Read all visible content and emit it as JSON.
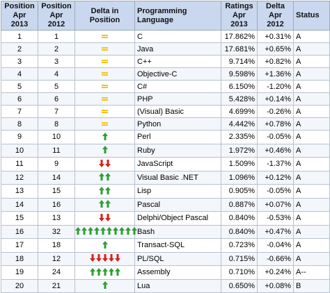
{
  "headers": {
    "pos2013": "Position Apr 2013",
    "pos2012": "Position Apr 2012",
    "delta": "Delta in Position",
    "lang": "Programming Language",
    "ratings": "Ratings Apr 2013",
    "delta2012": "Delta Apr 2012",
    "status": "Status"
  },
  "colors": {
    "same": "#f2c419",
    "up": "#2e9e32",
    "down": "#d8201c",
    "header_bg": "#c9d8ee"
  },
  "rows": [
    {
      "pos2013": "1",
      "pos2012": "1",
      "change": {
        "dir": "same",
        "count": 1
      },
      "lang": "C",
      "ratings": "17.862%",
      "delta2012": "+0.31%",
      "status": "A"
    },
    {
      "pos2013": "2",
      "pos2012": "2",
      "change": {
        "dir": "same",
        "count": 1
      },
      "lang": "Java",
      "ratings": "17.681%",
      "delta2012": "+0.65%",
      "status": "A"
    },
    {
      "pos2013": "3",
      "pos2012": "3",
      "change": {
        "dir": "same",
        "count": 1
      },
      "lang": "C++",
      "ratings": "9.714%",
      "delta2012": "+0.82%",
      "status": "A"
    },
    {
      "pos2013": "4",
      "pos2012": "4",
      "change": {
        "dir": "same",
        "count": 1
      },
      "lang": "Objective-C",
      "ratings": "9.598%",
      "delta2012": "+1.36%",
      "status": "A"
    },
    {
      "pos2013": "5",
      "pos2012": "5",
      "change": {
        "dir": "same",
        "count": 1
      },
      "lang": "C#",
      "ratings": "6.150%",
      "delta2012": "-1.20%",
      "status": "A"
    },
    {
      "pos2013": "6",
      "pos2012": "6",
      "change": {
        "dir": "same",
        "count": 1
      },
      "lang": "PHP",
      "ratings": "5.428%",
      "delta2012": "+0.14%",
      "status": "A"
    },
    {
      "pos2013": "7",
      "pos2012": "7",
      "change": {
        "dir": "same",
        "count": 1
      },
      "lang": "(Visual) Basic",
      "ratings": "4.699%",
      "delta2012": "-0.26%",
      "status": "A"
    },
    {
      "pos2013": "8",
      "pos2012": "8",
      "change": {
        "dir": "same",
        "count": 1
      },
      "lang": "Python",
      "ratings": "4.442%",
      "delta2012": "+0.78%",
      "status": "A"
    },
    {
      "pos2013": "9",
      "pos2012": "10",
      "change": {
        "dir": "up",
        "count": 1
      },
      "lang": "Perl",
      "ratings": "2.335%",
      "delta2012": "-0.05%",
      "status": "A"
    },
    {
      "pos2013": "10",
      "pos2012": "11",
      "change": {
        "dir": "up",
        "count": 1
      },
      "lang": "Ruby",
      "ratings": "1.972%",
      "delta2012": "+0.46%",
      "status": "A"
    },
    {
      "pos2013": "11",
      "pos2012": "9",
      "change": {
        "dir": "down",
        "count": 2
      },
      "lang": "JavaScript",
      "ratings": "1.509%",
      "delta2012": "-1.37%",
      "status": "A"
    },
    {
      "pos2013": "12",
      "pos2012": "14",
      "change": {
        "dir": "up",
        "count": 2
      },
      "lang": "Visual Basic .NET",
      "ratings": "1.096%",
      "delta2012": "+0.12%",
      "status": "A"
    },
    {
      "pos2013": "13",
      "pos2012": "15",
      "change": {
        "dir": "up",
        "count": 2
      },
      "lang": "Lisp",
      "ratings": "0.905%",
      "delta2012": "-0.05%",
      "status": "A"
    },
    {
      "pos2013": "14",
      "pos2012": "16",
      "change": {
        "dir": "up",
        "count": 2
      },
      "lang": "Pascal",
      "ratings": "0.887%",
      "delta2012": "+0.07%",
      "status": "A"
    },
    {
      "pos2013": "15",
      "pos2012": "13",
      "change": {
        "dir": "down",
        "count": 2
      },
      "lang": "Delphi/Object Pascal",
      "ratings": "0.840%",
      "delta2012": "-0.53%",
      "status": "A"
    },
    {
      "pos2013": "16",
      "pos2012": "32",
      "change": {
        "dir": "up",
        "count": 10
      },
      "lang": "Bash",
      "ratings": "0.840%",
      "delta2012": "+0.47%",
      "status": "A"
    },
    {
      "pos2013": "17",
      "pos2012": "18",
      "change": {
        "dir": "up",
        "count": 1
      },
      "lang": "Transact-SQL",
      "ratings": "0.723%",
      "delta2012": "-0.04%",
      "status": "A"
    },
    {
      "pos2013": "18",
      "pos2012": "12",
      "change": {
        "dir": "down",
        "count": 5
      },
      "lang": "PL/SQL",
      "ratings": "0.715%",
      "delta2012": "-0.66%",
      "status": "A"
    },
    {
      "pos2013": "19",
      "pos2012": "24",
      "change": {
        "dir": "up",
        "count": 5
      },
      "lang": "Assembly",
      "ratings": "0.710%",
      "delta2012": "+0.24%",
      "status": "A--"
    },
    {
      "pos2013": "20",
      "pos2012": "21",
      "change": {
        "dir": "up",
        "count": 1
      },
      "lang": "Lua",
      "ratings": "0.650%",
      "delta2012": "+0.08%",
      "status": "B"
    }
  ]
}
